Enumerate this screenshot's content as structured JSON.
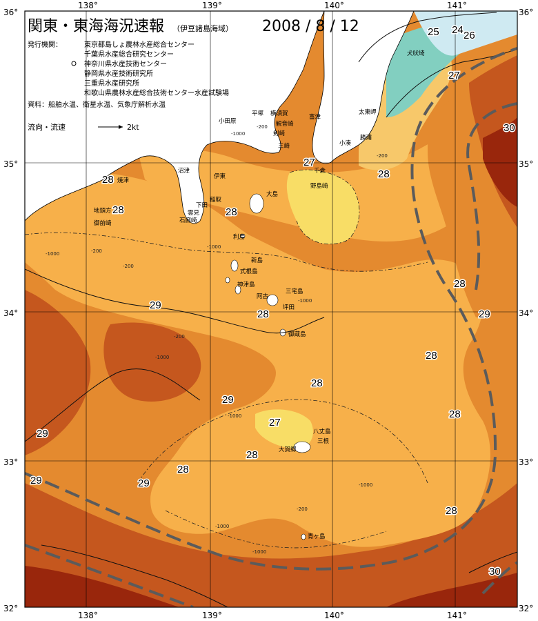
{
  "header": {
    "title": "関東・東海海況速報",
    "subtitle": "（伊豆諸島海域）",
    "date": "2008 / 8 / 12",
    "issuer_label": "発行機関：",
    "issuers": [
      "東京都島しょ農林水産総合センター",
      "千葉県水産総合研究センター",
      "神奈川県水産技術センター",
      "静岡県水産技術研究所",
      "三重県水産研究所",
      "和歌山県農林水産総合技術センター水産試験場"
    ],
    "source": "資料：船舶水温、衛星水温、気象庁解析水温",
    "legend": {
      "label": "流向・流速",
      "speed": "2kt"
    }
  },
  "axes": {
    "lon_ticks": [
      "138°",
      "139°",
      "140°",
      "141°"
    ],
    "lat_ticks": [
      "35°",
      "34°",
      "33°"
    ],
    "corners": [
      "36°",
      "36°",
      "32°",
      "32°"
    ]
  },
  "isotherm_labels": [
    "25",
    "24",
    "26",
    "27",
    "30",
    "28",
    "27",
    "28",
    "28",
    "28",
    "29",
    "28",
    "29",
    "28",
    "28",
    "28",
    "29",
    "27",
    "28",
    "28",
    "29",
    "29",
    "28",
    "28",
    "29",
    "30"
  ],
  "depth_labels": [
    "-200",
    "-1000",
    "-200",
    "-1000",
    "-200",
    "-200",
    "-1000",
    "-1000",
    "-200",
    "-1000",
    "-1000",
    "-1000",
    "-200",
    "-1000",
    "-1000"
  ],
  "places": [
    "犬吠埼",
    "太東岬",
    "勝浦",
    "小湊",
    "千倉",
    "野島崎",
    "富津",
    "平塚",
    "横須賀",
    "観音崎",
    "剣崎",
    "三崎",
    "小田原",
    "沼津",
    "伊東",
    "焼津",
    "御前崎",
    "地頭方",
    "石廊崎",
    "雲見",
    "下田",
    "稲取",
    "大島",
    "利島",
    "新島",
    "式根島",
    "神津島",
    "三宅島",
    "御蔵島",
    "坪田",
    "阿古",
    "八丈島",
    "三根",
    "大賀郷",
    "青ヶ島"
  ],
  "colors": {
    "land": "#ffffff",
    "cold": "#cfeaf2",
    "t26": "#82cfc0",
    "t27": "#f8dd66",
    "t28": "#f7b04a",
    "t29": "#e48a2f",
    "t30": "#c5571e",
    "t31": "#99260c",
    "dash": "#5b5b5b"
  }
}
